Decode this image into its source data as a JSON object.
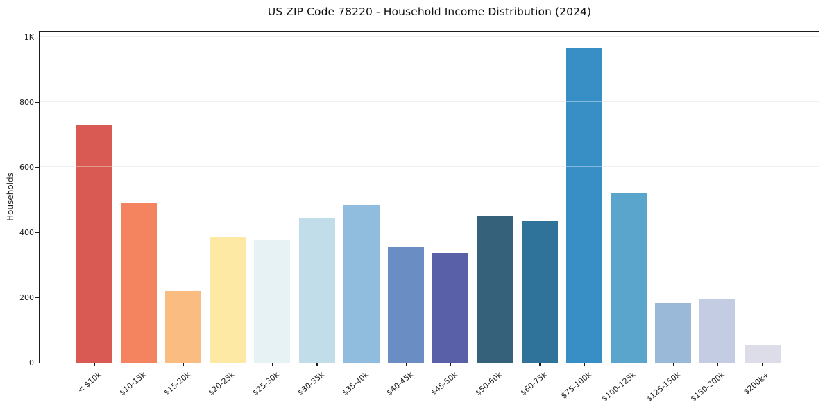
{
  "chart_data": {
    "type": "bar",
    "title": "US ZIP Code 78220 - Household Income Distribution (2024)",
    "xlabel": "",
    "ylabel": "Households",
    "categories": [
      "< $10k",
      "$10-15k",
      "$15-20k",
      "$20-25k",
      "$25-30k",
      "$30-35k",
      "$35-40k",
      "$40-45k",
      "$45-50k",
      "$50-60k",
      "$60-75k",
      "$75-100k",
      "$100-125k",
      "$125-150k",
      "$150-200k",
      "$200k+"
    ],
    "values": [
      730,
      490,
      220,
      386,
      376,
      442,
      482,
      356,
      337,
      449,
      434,
      967,
      521,
      183,
      193,
      54
    ],
    "bar_colors": [
      "#d95a52",
      "#f4845f",
      "#fabc80",
      "#fde9a4",
      "#e7f2f4",
      "#c0dde9",
      "#90bddd",
      "#6a8dc4",
      "#5a60a8",
      "#35617a",
      "#2f739b",
      "#388fc6",
      "#5aa5cb",
      "#9ab9d9",
      "#c3cce3",
      "#dcdde9"
    ],
    "ylim": [
      0,
      1000
    ],
    "yticks": [
      {
        "value": 0,
        "label": "0"
      },
      {
        "value": 200,
        "label": "200"
      },
      {
        "value": 400,
        "label": "400"
      },
      {
        "value": 600,
        "label": "600"
      },
      {
        "value": 800,
        "label": "800"
      },
      {
        "value": 1000,
        "label": "1K"
      }
    ],
    "grid": "horizontal",
    "legend": "none"
  },
  "colors": {
    "background": "#ffffff",
    "grid": "#e7e7ef",
    "spine": "#1b1b1b",
    "text": "#1a1a1a"
  }
}
